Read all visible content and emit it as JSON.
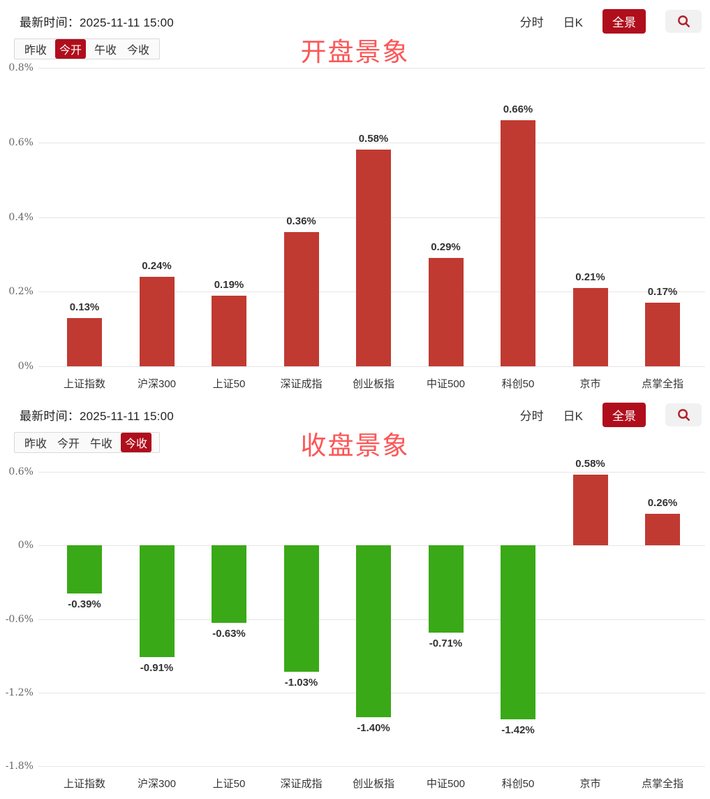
{
  "panels": [
    {
      "time_label": "最新时间：",
      "time_value": "2025-11-11 15:00",
      "views": {
        "minute": "分时",
        "daily": "日K",
        "panorama": "全景"
      },
      "tabs": [
        {
          "label": "昨收",
          "active": false
        },
        {
          "label": "今开",
          "active": true
        },
        {
          "label": "午收",
          "active": false
        },
        {
          "label": "今收",
          "active": false
        }
      ],
      "title": "开盘景象"
    },
    {
      "time_label": "最新时间：",
      "time_value": "2025-11-11 15:00",
      "views": {
        "minute": "分时",
        "daily": "日K",
        "panorama": "全景"
      },
      "tabs": [
        {
          "label": "昨收",
          "active": false
        },
        {
          "label": "今开",
          "active": false
        },
        {
          "label": "午收",
          "active": false
        },
        {
          "label": "今收",
          "active": true
        }
      ],
      "title": "收盘景象"
    }
  ],
  "colors": {
    "positive_bar": "#c03a32",
    "negative_bar": "#3aa917",
    "deep_red_accent": "#b00e1c",
    "title_red": "#fb5757",
    "search_icon_red": "#b3212a"
  },
  "icons": {
    "search": "magnifier"
  },
  "chart_data": [
    {
      "type": "bar",
      "title": "开盘景象",
      "categories": [
        "上证指数",
        "沪深300",
        "上证50",
        "深证成指",
        "创业板指",
        "中证500",
        "科创50",
        "京市",
        "点掌全指"
      ],
      "values": [
        0.13,
        0.24,
        0.19,
        0.36,
        0.58,
        0.29,
        0.66,
        0.21,
        0.17
      ],
      "labels": [
        "0.13%",
        "0.24%",
        "0.19%",
        "0.36%",
        "0.58%",
        "0.29%",
        "0.66%",
        "0.21%",
        "0.17%"
      ],
      "xlabel": "",
      "ylabel": "",
      "ylim": [
        0,
        0.8
      ],
      "yticks": [
        {
          "value": 0.8,
          "label": "0.8%"
        },
        {
          "value": 0.6,
          "label": "0.6%"
        },
        {
          "value": 0.4,
          "label": "0.4%"
        },
        {
          "value": 0.2,
          "label": "0.2%"
        },
        {
          "value": 0,
          "label": "0%"
        }
      ],
      "grid": true,
      "legend": "none"
    },
    {
      "type": "bar",
      "title": "收盘景象",
      "categories": [
        "上证指数",
        "沪深300",
        "上证50",
        "深证成指",
        "创业板指",
        "中证500",
        "科创50",
        "京市",
        "点掌全指"
      ],
      "values": [
        -0.39,
        -0.91,
        -0.63,
        -1.03,
        -1.4,
        -0.71,
        -1.42,
        0.58,
        0.26
      ],
      "labels": [
        "-0.39%",
        "-0.91%",
        "-0.63%",
        "-1.03%",
        "-1.40%",
        "-0.71%",
        "-1.42%",
        "0.58%",
        "0.26%"
      ],
      "xlabel": "",
      "ylabel": "",
      "ylim": [
        -1.8,
        0.6
      ],
      "yticks": [
        {
          "value": 0.6,
          "label": "0.6%"
        },
        {
          "value": 0,
          "label": "0%"
        },
        {
          "value": -0.6,
          "label": "-0.6%"
        },
        {
          "value": -1.2,
          "label": "-1.2%"
        },
        {
          "value": -1.8,
          "label": "-1.8%"
        }
      ],
      "grid": true,
      "legend": "none"
    }
  ]
}
